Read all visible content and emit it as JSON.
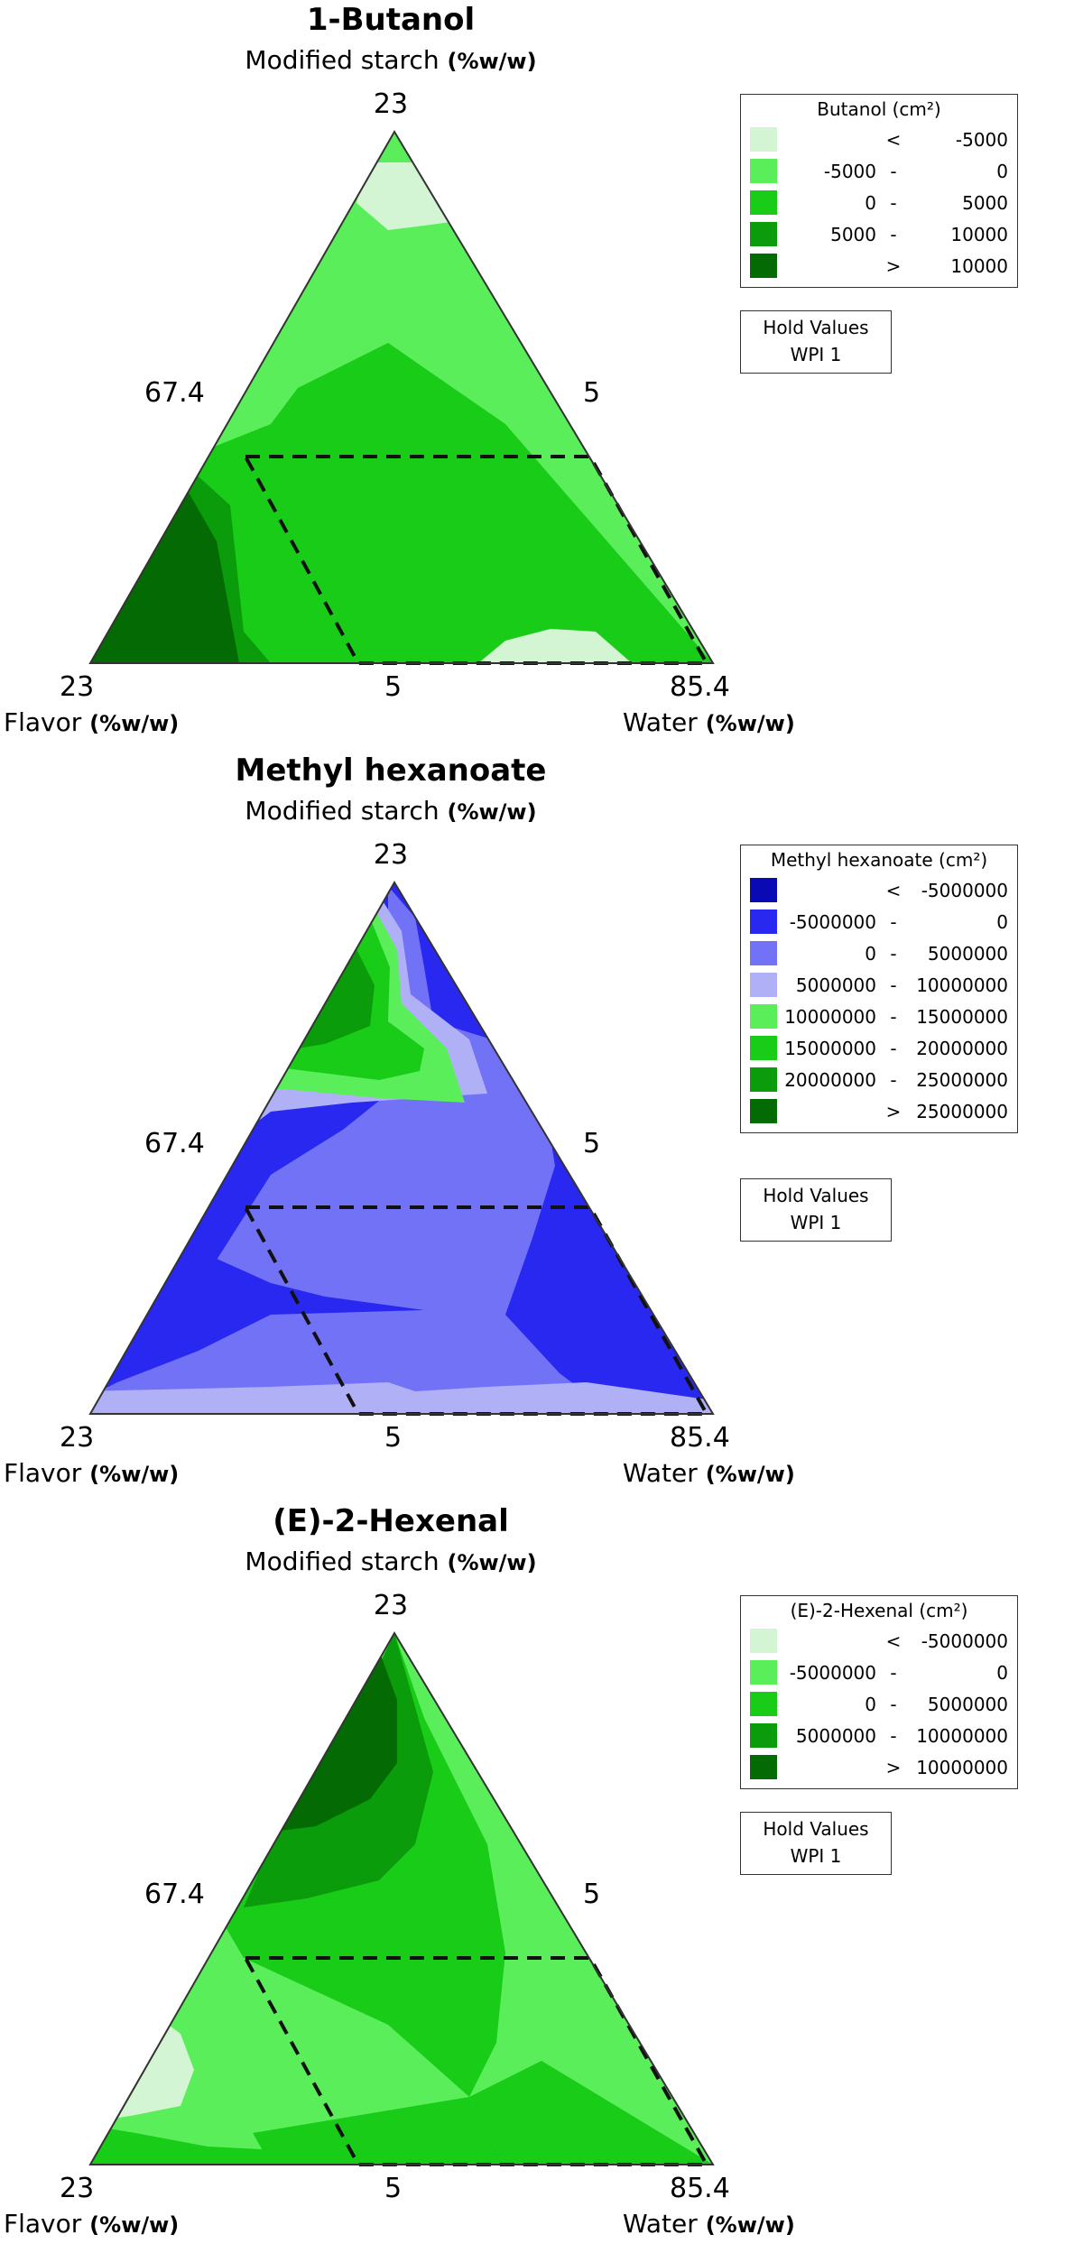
{
  "figure": {
    "x_axis_label": "Flavor",
    "y_axis_label": "Water",
    "top_axis_label": "Modified starch",
    "unit_label": "(%w/w)",
    "apex_top": "23",
    "left_edge_tick": "67.4",
    "right_edge_tick": "5",
    "left_corner_value": "23",
    "bottom_middle_value": "5",
    "right_corner_value": "85.4",
    "hold_title": "Hold Values",
    "hold_value": "WPI  1"
  },
  "chart_data": [
    {
      "type": "heatmap",
      "title": "1-Butanol",
      "plot_kind": "ternary contour",
      "components": [
        "Modified starch (%w/w)",
        "Flavor (%w/w)",
        "Water (%w/w)"
      ],
      "legend_title": "Butanol (cm²)",
      "legend": [
        {
          "lo": "",
          "op": "<",
          "hi": "-5000",
          "color": "#d4f5d4"
        },
        {
          "lo": "-5000",
          "op": "-",
          "hi": "0",
          "color": "#5bee5b"
        },
        {
          "lo": "0",
          "op": "-",
          "hi": "5000",
          "color": "#18cc18"
        },
        {
          "lo": "5000",
          "op": "-",
          "hi": "10000",
          "color": "#0a9c0a"
        },
        {
          "lo": "",
          "op": ">",
          "hi": "10000",
          "color": "#046a04"
        }
      ]
    },
    {
      "type": "heatmap",
      "title": "Methyl hexanoate",
      "plot_kind": "ternary contour",
      "components": [
        "Modified starch (%w/w)",
        "Flavor (%w/w)",
        "Water (%w/w)"
      ],
      "legend_title": "Methyl hexanoate (cm²)",
      "legend": [
        {
          "lo": "",
          "op": "<",
          "hi": "-5000000",
          "color": "#0a0ab4"
        },
        {
          "lo": "-5000000",
          "op": "-",
          "hi": "0",
          "color": "#2828f0"
        },
        {
          "lo": "0",
          "op": "-",
          "hi": "5000000",
          "color": "#7272f7"
        },
        {
          "lo": "5000000",
          "op": "-",
          "hi": "10000000",
          "color": "#b0b0f7"
        },
        {
          "lo": "10000000",
          "op": "-",
          "hi": "15000000",
          "color": "#5bee5b"
        },
        {
          "lo": "15000000",
          "op": "-",
          "hi": "20000000",
          "color": "#18cc18"
        },
        {
          "lo": "20000000",
          "op": "-",
          "hi": "25000000",
          "color": "#0a9c0a"
        },
        {
          "lo": "",
          "op": ">",
          "hi": "25000000",
          "color": "#046a04"
        }
      ]
    },
    {
      "type": "heatmap",
      "title": "(E)-2-Hexenal",
      "plot_kind": "ternary contour",
      "components": [
        "Modified starch (%w/w)",
        "Flavor (%w/w)",
        "Water (%w/w)"
      ],
      "legend_title": "(E)-2-Hexenal (cm²)",
      "legend": [
        {
          "lo": "",
          "op": "<",
          "hi": "-5000000",
          "color": "#d4f5d4"
        },
        {
          "lo": "-5000000",
          "op": "-",
          "hi": "0",
          "color": "#5bee5b"
        },
        {
          "lo": "0",
          "op": "-",
          "hi": "5000000",
          "color": "#18cc18"
        },
        {
          "lo": "5000000",
          "op": "-",
          "hi": "10000000",
          "color": "#0a9c0a"
        },
        {
          "lo": "",
          "op": ">",
          "hi": "10000000",
          "color": "#046a04"
        }
      ]
    }
  ]
}
